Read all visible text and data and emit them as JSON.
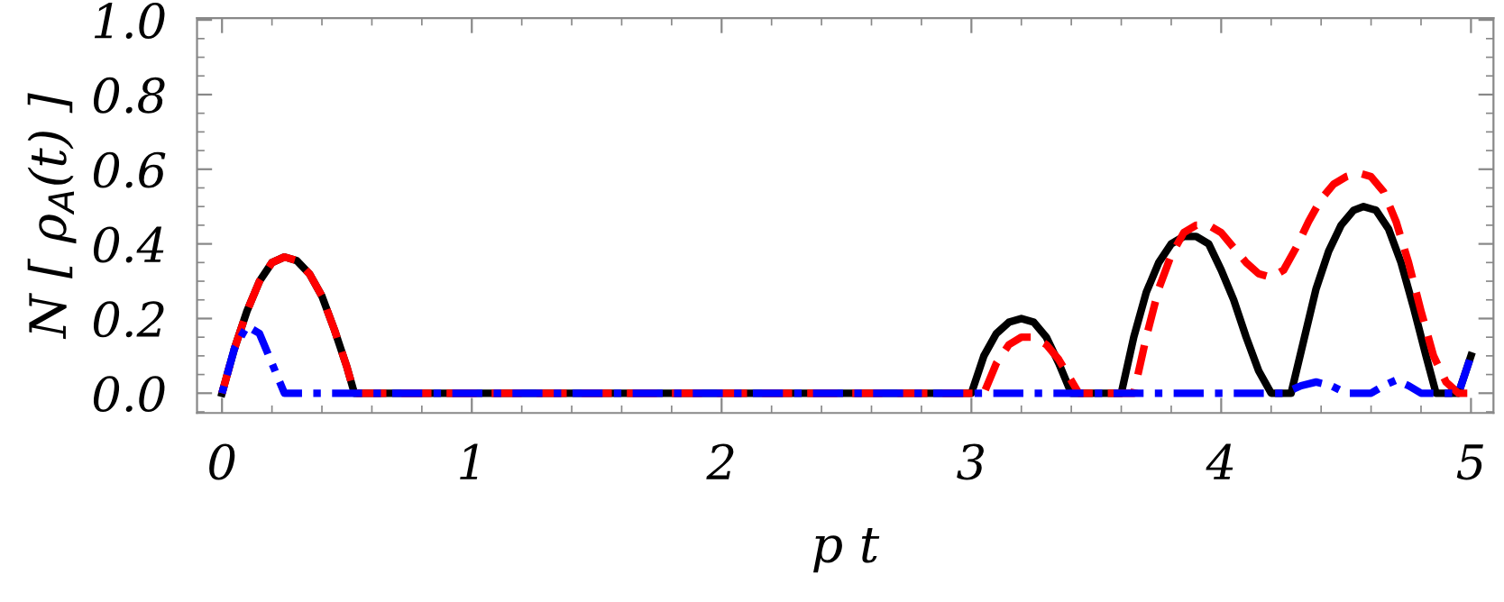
{
  "chart_data": {
    "type": "line",
    "xlabel": "p t",
    "ylabel": "N [ ρ$_{A}$(t) ]",
    "xlim": [
      -0.1,
      5.09
    ],
    "ylim": [
      -0.053,
      1.005
    ],
    "xticks": [
      0,
      1,
      2,
      3,
      4,
      5
    ],
    "yticks": [
      {
        "value": 0,
        "label": "0.0"
      },
      {
        "value": 0.2,
        "label": "0.2"
      },
      {
        "value": 0.4,
        "label": "0.4"
      },
      {
        "value": 0.6,
        "label": "0.6"
      },
      {
        "value": 0.8,
        "label": "0.8"
      },
      {
        "value": 1,
        "label": "1.0"
      }
    ],
    "grid": false,
    "legend": false,
    "series": [
      {
        "color": "#000000",
        "line_style": "solid",
        "x": [
          0,
          0.05,
          0.1,
          0.15,
          0.2,
          0.25,
          0.3,
          0.35,
          0.4,
          0.45,
          0.5,
          0.53,
          1,
          2,
          3.0,
          3.05,
          3.1,
          3.15,
          3.2,
          3.25,
          3.3,
          3.35,
          3.4,
          3.6,
          3.65,
          3.7,
          3.75,
          3.8,
          3.85,
          3.9,
          3.95,
          4.0,
          4.05,
          4.1,
          4.15,
          4.2,
          4.28,
          4.33,
          4.38,
          4.43,
          4.48,
          4.53,
          4.57,
          4.62,
          4.67,
          4.72,
          4.77,
          4.82,
          4.86,
          4.95,
          5.0
        ],
        "values": [
          0,
          0.12,
          0.22,
          0.3,
          0.35,
          0.365,
          0.355,
          0.32,
          0.26,
          0.17,
          0.07,
          0,
          0,
          0,
          0,
          0.1,
          0.16,
          0.19,
          0.2,
          0.19,
          0.15,
          0.08,
          0,
          0,
          0.15,
          0.27,
          0.35,
          0.4,
          0.42,
          0.42,
          0.4,
          0.33,
          0.25,
          0.15,
          0.06,
          0,
          0,
          0.14,
          0.28,
          0.38,
          0.45,
          0.49,
          0.5,
          0.49,
          0.44,
          0.35,
          0.23,
          0.1,
          0,
          0,
          0.1
        ]
      },
      {
        "color": "#ff0000",
        "line_style": "dashed",
        "x": [
          0,
          0.05,
          0.1,
          0.15,
          0.2,
          0.25,
          0.3,
          0.35,
          0.4,
          0.45,
          0.5,
          0.53,
          1,
          2,
          3.05,
          3.1,
          3.15,
          3.2,
          3.25,
          3.3,
          3.35,
          3.43,
          3.65,
          3.7,
          3.75,
          3.8,
          3.85,
          3.9,
          3.95,
          4.0,
          4.05,
          4.1,
          4.15,
          4.2,
          4.25,
          4.3,
          4.35,
          4.4,
          4.45,
          4.5,
          4.55,
          4.6,
          4.65,
          4.7,
          4.75,
          4.8,
          4.85,
          4.9,
          4.95,
          5.0
        ],
        "values": [
          0,
          0.12,
          0.22,
          0.3,
          0.35,
          0.365,
          0.355,
          0.32,
          0.26,
          0.17,
          0.07,
          0,
          0,
          0,
          0,
          0.08,
          0.13,
          0.15,
          0.15,
          0.13,
          0.09,
          0,
          0,
          0.15,
          0.28,
          0.37,
          0.43,
          0.45,
          0.45,
          0.43,
          0.39,
          0.35,
          0.32,
          0.31,
          0.33,
          0.39,
          0.46,
          0.52,
          0.56,
          0.58,
          0.59,
          0.58,
          0.54,
          0.46,
          0.35,
          0.22,
          0.1,
          0.03,
          0,
          0
        ]
      },
      {
        "color": "#0000ff",
        "line_style": "dashdot",
        "x": [
          0,
          0.05,
          0.1,
          0.15,
          0.2,
          0.25,
          1,
          2,
          3,
          4,
          4.25,
          4.32,
          4.38,
          4.44,
          4.5,
          4.6,
          4.65,
          4.7,
          4.75,
          4.8,
          4.95,
          5.0
        ],
        "values": [
          0,
          0.12,
          0.18,
          0.16,
          0.08,
          0,
          0,
          0,
          0,
          0,
          0,
          0.02,
          0.03,
          0.02,
          0,
          0,
          0.02,
          0.035,
          0.02,
          0,
          0,
          0.1
        ]
      }
    ]
  }
}
